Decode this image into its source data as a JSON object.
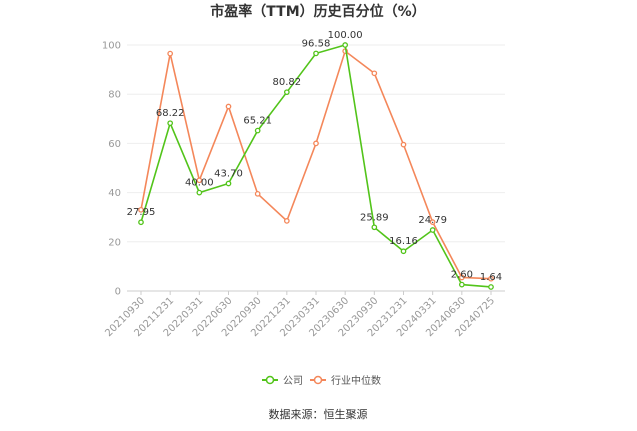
{
  "chart_data": {
    "type": "line",
    "title": "市盈率（TTM）历史百分位（%）",
    "categories": [
      "20210930",
      "20211231",
      "20220331",
      "20220630",
      "20220930",
      "20221231",
      "20230331",
      "20230630",
      "20230930",
      "20231231",
      "20240331",
      "20240630",
      "20240725"
    ],
    "series": [
      {
        "name": "公司",
        "color": "#52c41a",
        "values": [
          27.95,
          68.22,
          40.0,
          43.7,
          65.21,
          80.82,
          96.58,
          100.0,
          25.89,
          16.16,
          24.79,
          2.6,
          1.64
        ],
        "labels": [
          "27.95",
          "68.22",
          "40.00",
          "43.70",
          "65.21",
          "80.82",
          "96.58",
          "100.00",
          "25.89",
          "16.16",
          "24.79",
          "2.60",
          "1.64"
        ]
      },
      {
        "name": "行业中位数",
        "color": "#f4875a",
        "values": [
          33,
          96.5,
          45,
          75,
          39.5,
          28.5,
          60,
          97.5,
          88.5,
          59.5,
          28,
          5.5,
          5
        ]
      }
    ],
    "ylim": [
      0,
      100
    ],
    "yticks": [
      "0",
      "20",
      "40",
      "60",
      "80",
      "100"
    ],
    "grid": true,
    "legend_position": "bottom"
  },
  "source": "数据来源：恒生聚源"
}
